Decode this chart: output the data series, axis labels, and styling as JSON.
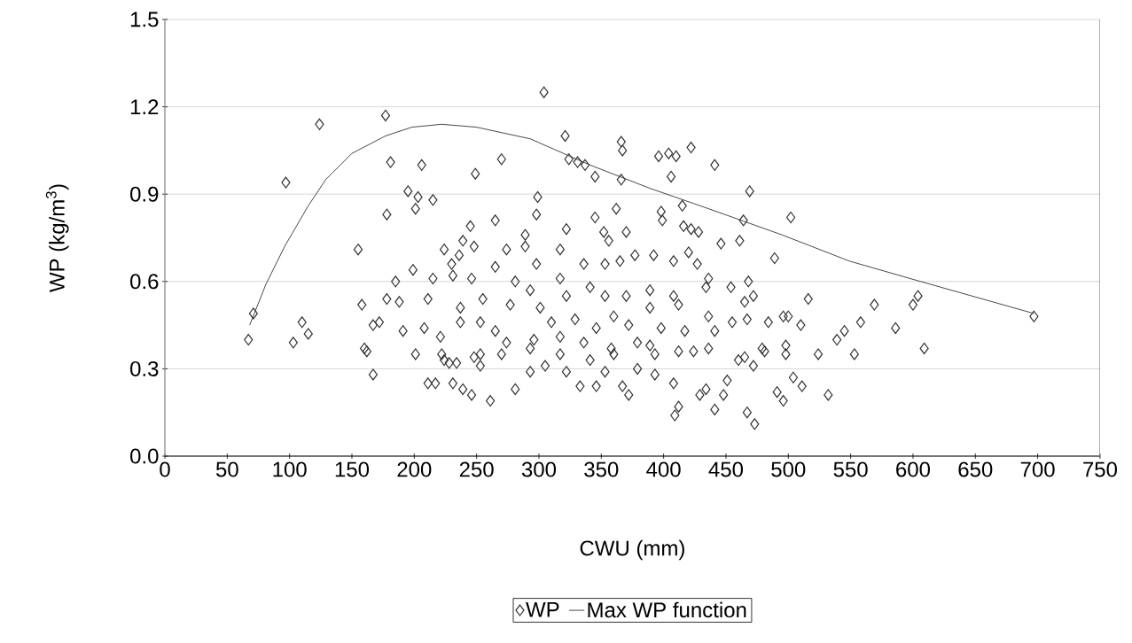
{
  "chart_data": {
    "type": "scatter",
    "xlabel": "CWU (mm)",
    "ylabel": "WP (kg/m$^{3}$)",
    "xlim": [
      0,
      750
    ],
    "ylim": [
      0,
      1.5
    ],
    "xticks": [
      0,
      50,
      100,
      150,
      200,
      250,
      300,
      350,
      400,
      450,
      500,
      550,
      600,
      650,
      700,
      750
    ],
    "yticks": [
      {
        "value": 0,
        "label": "0.0"
      },
      0.3,
      0.6,
      0.9,
      1.2,
      1.5
    ],
    "grid": "y",
    "legend": "bottom",
    "series": [
      {
        "name": "WP",
        "marker": "diamond",
        "color": "#333333",
        "x": [
          124,
          177,
          97,
          181,
          206,
          249,
          195,
          203,
          215,
          201,
          178,
          245,
          155,
          239,
          248,
          224,
          236,
          230,
          199,
          215,
          231,
          246,
          185,
          71,
          67,
          110,
          115,
          103,
          158,
          178,
          188,
          211,
          167,
          172,
          191,
          208,
          221,
          237,
          237,
          160,
          162,
          201,
          222,
          167,
          211,
          217,
          224,
          228,
          234,
          231,
          239,
          246,
          248,
          304,
          321,
          366,
          367,
          270,
          324,
          331,
          337,
          345,
          366,
          396,
          404,
          410,
          422,
          406,
          441,
          469,
          502,
          299,
          298,
          265,
          345,
          362,
          398,
          399,
          415,
          416,
          422,
          428,
          464,
          446,
          461,
          489,
          274,
          289,
          289,
          322,
          317,
          352,
          370,
          356,
          377,
          392,
          408,
          420,
          427,
          265,
          298,
          336,
          353,
          365,
          468,
          454,
          436,
          281,
          293,
          317,
          322,
          341,
          353,
          370,
          389,
          408,
          434,
          465,
          472,
          255,
          253,
          277,
          265,
          301,
          310,
          329,
          346,
          360,
          372,
          389,
          398,
          412,
          417,
          436,
          441,
          455,
          467,
          484,
          496,
          253,
          274,
          296,
          317,
          336,
          358,
          379,
          393,
          412,
          436,
          465,
          481,
          498,
          253,
          261,
          281,
          270,
          293,
          305,
          317,
          333,
          346,
          341,
          367,
          372,
          360,
          379,
          393,
          408,
          412,
          409,
          429,
          434,
          441,
          448,
          451,
          467,
          473,
          460,
          472,
          491,
          496,
          479,
          498,
          389,
          424,
          322,
          293,
          353,
          697,
          604,
          600,
          569,
          516,
          558,
          545,
          539,
          586,
          609,
          553,
          524,
          532,
          510,
          500,
          511,
          504
        ],
        "values": [
          1.14,
          1.17,
          0.94,
          1.01,
          1.0,
          0.97,
          0.91,
          0.89,
          0.88,
          0.85,
          0.83,
          0.79,
          0.71,
          0.74,
          0.72,
          0.71,
          0.69,
          0.66,
          0.64,
          0.61,
          0.62,
          0.61,
          0.6,
          0.49,
          0.4,
          0.46,
          0.42,
          0.39,
          0.52,
          0.54,
          0.53,
          0.54,
          0.45,
          0.46,
          0.43,
          0.44,
          0.41,
          0.51,
          0.46,
          0.37,
          0.36,
          0.35,
          0.35,
          0.28,
          0.25,
          0.25,
          0.33,
          0.32,
          0.32,
          0.25,
          0.23,
          0.21,
          0.34,
          1.25,
          1.1,
          1.08,
          1.05,
          1.02,
          1.02,
          1.01,
          1.0,
          0.96,
          0.95,
          1.03,
          1.04,
          1.03,
          1.06,
          0.96,
          1.0,
          0.91,
          0.82,
          0.89,
          0.83,
          0.81,
          0.82,
          0.85,
          0.84,
          0.81,
          0.86,
          0.79,
          0.78,
          0.77,
          0.81,
          0.73,
          0.74,
          0.68,
          0.71,
          0.76,
          0.72,
          0.78,
          0.71,
          0.77,
          0.77,
          0.74,
          0.69,
          0.69,
          0.67,
          0.7,
          0.66,
          0.65,
          0.66,
          0.66,
          0.66,
          0.67,
          0.6,
          0.58,
          0.61,
          0.6,
          0.57,
          0.61,
          0.55,
          0.58,
          0.55,
          0.55,
          0.57,
          0.55,
          0.58,
          0.53,
          0.55,
          0.54,
          0.46,
          0.52,
          0.43,
          0.51,
          0.46,
          0.47,
          0.44,
          0.48,
          0.45,
          0.51,
          0.44,
          0.52,
          0.43,
          0.48,
          0.43,
          0.46,
          0.47,
          0.46,
          0.48,
          0.35,
          0.39,
          0.4,
          0.41,
          0.39,
          0.37,
          0.39,
          0.35,
          0.36,
          0.37,
          0.34,
          0.36,
          0.38,
          0.31,
          0.19,
          0.23,
          0.35,
          0.37,
          0.31,
          0.35,
          0.24,
          0.24,
          0.33,
          0.24,
          0.21,
          0.35,
          0.3,
          0.28,
          0.25,
          0.17,
          0.14,
          0.21,
          0.23,
          0.16,
          0.21,
          0.26,
          0.15,
          0.11,
          0.33,
          0.31,
          0.22,
          0.19,
          0.37,
          0.35,
          0.38,
          0.36,
          0.29,
          0.29,
          0.29,
          0.48,
          0.55,
          0.52,
          0.52,
          0.54,
          0.46,
          0.43,
          0.4,
          0.44,
          0.37,
          0.35,
          0.35,
          0.21,
          0.45,
          0.48,
          0.24,
          0.27
        ]
      },
      {
        "name": "Max WP function",
        "type": "line",
        "marker": "none",
        "line_style": "solid",
        "color": "#1a1a1a",
        "x": [
          68,
          81,
          96,
          115,
          129,
          150,
          177,
          198,
          222,
          250,
          293,
          341,
          389,
          436,
          495,
          549,
          606,
          697
        ],
        "values": [
          0.45,
          0.59,
          0.72,
          0.86,
          0.95,
          1.04,
          1.1,
          1.13,
          1.14,
          1.13,
          1.09,
          1.0,
          0.92,
          0.85,
          0.76,
          0.67,
          0.6,
          0.49
        ]
      }
    ]
  }
}
